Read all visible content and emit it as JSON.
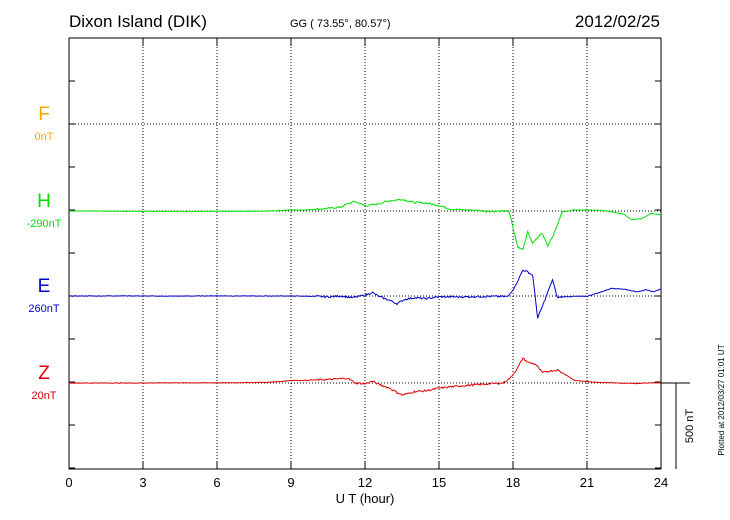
{
  "header": {
    "station": "Dixon Island (DIK)",
    "coords": "GG ( 73.55°,  80.57°)",
    "date": "2012/02/25"
  },
  "plotted_note": "Plotted at 2012/03/27 01:01 UT",
  "chart_data": {
    "type": "line",
    "xlabel": "U T (hour)",
    "xlim": [
      0,
      24
    ],
    "xticks": [
      0,
      3,
      6,
      9,
      12,
      15,
      18,
      21,
      24
    ],
    "scale_bar": {
      "label": "500 nT",
      "value_nT": 500
    },
    "series": [
      {
        "name": "F",
        "offset": "0nT",
        "color": "#ffa500",
        "values": []
      },
      {
        "name": "H",
        "offset": "-290nT",
        "color": "#00e000",
        "points": [
          [
            0,
            0
          ],
          [
            1,
            0
          ],
          [
            2,
            -1
          ],
          [
            3,
            -2
          ],
          [
            4,
            -2
          ],
          [
            5,
            -2
          ],
          [
            6,
            -1
          ],
          [
            7,
            -2
          ],
          [
            8,
            -1
          ],
          [
            8.5,
            3
          ],
          [
            9,
            6
          ],
          [
            9.5,
            6
          ],
          [
            10,
            10
          ],
          [
            10.5,
            15
          ],
          [
            11,
            22
          ],
          [
            11.3,
            42
          ],
          [
            11.6,
            55
          ],
          [
            12,
            30
          ],
          [
            12.5,
            40
          ],
          [
            13,
            60
          ],
          [
            13.5,
            68
          ],
          [
            14,
            50
          ],
          [
            14.5,
            46
          ],
          [
            15,
            32
          ],
          [
            15.5,
            10
          ],
          [
            16,
            7
          ],
          [
            16.5,
            4
          ],
          [
            17,
            -2
          ],
          [
            17.5,
            -2
          ],
          [
            17.8,
            0
          ],
          [
            17.9,
            -30
          ],
          [
            18,
            -100
          ],
          [
            18.2,
            -210
          ],
          [
            18.4,
            -220
          ],
          [
            18.6,
            -120
          ],
          [
            18.8,
            -190
          ],
          [
            19,
            -150
          ],
          [
            19.2,
            -130
          ],
          [
            19.4,
            -200
          ],
          [
            19.6,
            -150
          ],
          [
            19.8,
            -80
          ],
          [
            20,
            -5
          ],
          [
            20.5,
            6
          ],
          [
            21,
            6
          ],
          [
            21.5,
            4
          ],
          [
            22,
            -4
          ],
          [
            22.5,
            -18
          ],
          [
            22.8,
            -50
          ],
          [
            23.2,
            -45
          ],
          [
            23.6,
            -15
          ],
          [
            24,
            -22
          ]
        ]
      },
      {
        "name": "E",
        "offset": "260nT",
        "color": "#0000cc",
        "points": [
          [
            0,
            0
          ],
          [
            1,
            0
          ],
          [
            2,
            1
          ],
          [
            3,
            0
          ],
          [
            4,
            -1
          ],
          [
            5,
            0
          ],
          [
            6,
            1
          ],
          [
            7,
            0
          ],
          [
            8,
            0
          ],
          [
            9,
            0
          ],
          [
            10,
            -2
          ],
          [
            10.5,
            -5
          ],
          [
            11,
            0
          ],
          [
            11.5,
            -10
          ],
          [
            12,
            5
          ],
          [
            12.3,
            20
          ],
          [
            12.6,
            -5
          ],
          [
            13,
            -25
          ],
          [
            13.3,
            -45
          ],
          [
            13.6,
            -20
          ],
          [
            14,
            -10
          ],
          [
            14.5,
            -15
          ],
          [
            15,
            -5
          ],
          [
            16,
            -5
          ],
          [
            17,
            -2
          ],
          [
            17.8,
            -3
          ],
          [
            18.1,
            60
          ],
          [
            18.4,
            150
          ],
          [
            18.6,
            140
          ],
          [
            18.8,
            120
          ],
          [
            19,
            -130
          ],
          [
            19.3,
            -20
          ],
          [
            19.6,
            95
          ],
          [
            19.8,
            -10
          ],
          [
            20,
            -5
          ],
          [
            20.5,
            -2
          ],
          [
            21,
            -2
          ],
          [
            21.5,
            20
          ],
          [
            22,
            45
          ],
          [
            22.5,
            40
          ],
          [
            23,
            25
          ],
          [
            23.4,
            35
          ],
          [
            23.7,
            25
          ],
          [
            24,
            40
          ]
        ]
      },
      {
        "name": "Z",
        "offset": "20nT",
        "color": "#e00000",
        "points": [
          [
            0,
            0
          ],
          [
            1,
            0
          ],
          [
            2,
            0
          ],
          [
            3,
            0
          ],
          [
            4,
            1
          ],
          [
            5,
            1
          ],
          [
            6,
            1
          ],
          [
            7,
            2
          ],
          [
            8,
            4
          ],
          [
            8.5,
            8
          ],
          [
            9,
            15
          ],
          [
            9.5,
            15
          ],
          [
            10,
            18
          ],
          [
            10.5,
            20
          ],
          [
            11,
            25
          ],
          [
            11.3,
            28
          ],
          [
            11.6,
            0
          ],
          [
            12,
            -5
          ],
          [
            12.3,
            10
          ],
          [
            12.6,
            -10
          ],
          [
            13,
            -30
          ],
          [
            13.3,
            -55
          ],
          [
            13.5,
            -70
          ],
          [
            13.8,
            -60
          ],
          [
            14,
            -50
          ],
          [
            14.5,
            -45
          ],
          [
            15,
            -30
          ],
          [
            15.5,
            -22
          ],
          [
            16,
            -15
          ],
          [
            16.5,
            -10
          ],
          [
            17,
            -5
          ],
          [
            17.6,
            0
          ],
          [
            17.9,
            30
          ],
          [
            18.2,
            90
          ],
          [
            18.4,
            145
          ],
          [
            18.6,
            120
          ],
          [
            18.9,
            110
          ],
          [
            19.2,
            60
          ],
          [
            19.5,
            70
          ],
          [
            19.8,
            75
          ],
          [
            20,
            60
          ],
          [
            20.5,
            15
          ],
          [
            21,
            8
          ],
          [
            21.5,
            4
          ],
          [
            22,
            2
          ],
          [
            22.5,
            -2
          ],
          [
            23,
            -3
          ],
          [
            23.5,
            1
          ],
          [
            24,
            2
          ]
        ]
      }
    ]
  }
}
